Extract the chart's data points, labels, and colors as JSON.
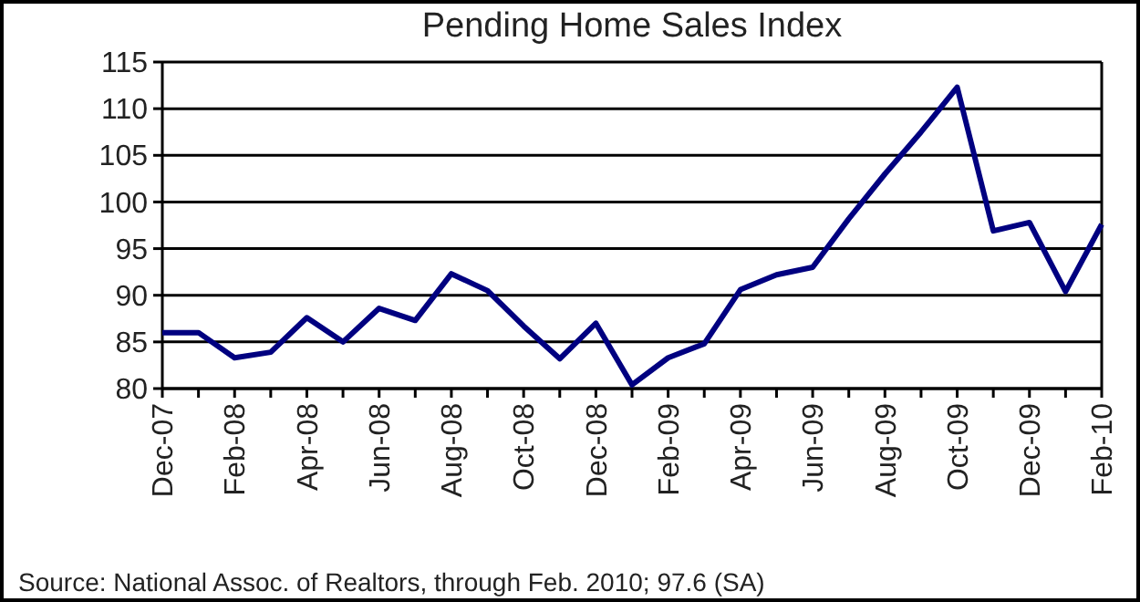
{
  "chart_data": {
    "type": "line",
    "title": "Pending Home Sales Index",
    "categories": [
      "Dec-07",
      null,
      "Feb-08",
      null,
      "Apr-08",
      null,
      "Jun-08",
      null,
      "Aug-08",
      null,
      "Oct-08",
      null,
      "Dec-08",
      null,
      "Feb-09",
      null,
      "Apr-09",
      null,
      "Jun-09",
      null,
      "Aug-09",
      null,
      "Oct-09",
      null,
      "Dec-09",
      null,
      "Feb-10"
    ],
    "series": [
      {
        "color": "#000080",
        "values": [
          86,
          86,
          83.3,
          83.9,
          87.6,
          85,
          88.6,
          87.3,
          92.3,
          90.5,
          86.7,
          83.2,
          87,
          80.4,
          83.3,
          84.8,
          90.6,
          92.2,
          93,
          98.2,
          103,
          107.5,
          112.3,
          96.9,
          97.8,
          90.4,
          97.6
        ]
      }
    ],
    "ylim": [
      80,
      115
    ],
    "yticks": [
      80,
      85,
      90,
      95,
      100,
      105,
      110,
      115
    ],
    "grid": "y",
    "marker": "none",
    "line_style": "solid",
    "annotations": [
      "Source: National Assoc. of Realtors, through Feb. 2010; 97.6 (SA)"
    ]
  }
}
